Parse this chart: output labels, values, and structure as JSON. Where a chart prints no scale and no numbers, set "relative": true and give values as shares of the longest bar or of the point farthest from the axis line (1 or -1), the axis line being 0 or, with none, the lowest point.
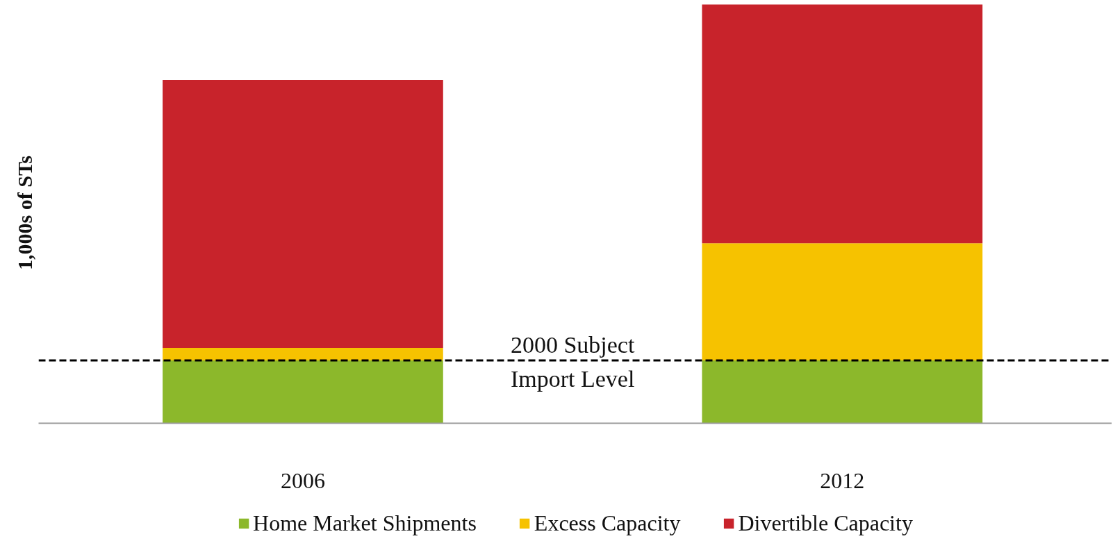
{
  "chart_data": {
    "type": "bar",
    "stacked": true,
    "relative": true,
    "ylabel": "1,000s of STs",
    "categories": [
      "2006",
      "2012"
    ],
    "series": [
      {
        "name": "Home Market Shipments",
        "color": "#8cb82b",
        "values": [
          0.15,
          0.15
        ]
      },
      {
        "name": "Excess Capacity",
        "color": "#f6c200",
        "values": [
          0.03,
          0.28
        ]
      },
      {
        "name": "Divertible Capacity",
        "color": "#c8232b",
        "values": [
          0.64,
          0.57
        ]
      }
    ],
    "ref_lines": [
      {
        "axis": "y",
        "value": 0.15,
        "label": "2000 Subject\nImport Level",
        "color": "#000000",
        "line_style": "dashed"
      }
    ],
    "legend": "bottom",
    "grid": false
  }
}
